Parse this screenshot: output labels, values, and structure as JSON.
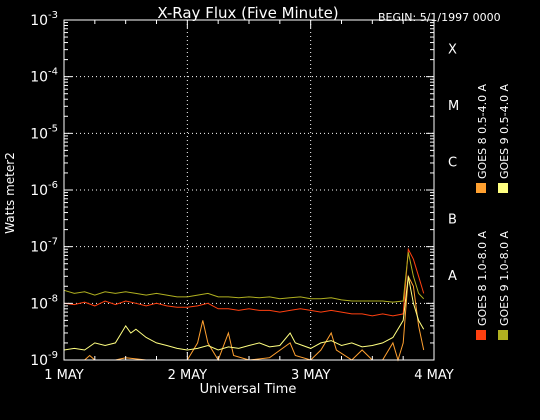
{
  "chart_data": {
    "type": "line",
    "title": "X-Ray Flux (Five Minute)",
    "begin_label": "BEGIN: 5/1/1997 0000",
    "xlabel": "Universal Time",
    "ylabel": "Watts meter2",
    "x_unit": "hours since begin",
    "xlim": [
      0,
      72
    ],
    "x_ticks": [
      {
        "value": 0,
        "label": "1 MAY"
      },
      {
        "value": 24,
        "label": "2 MAY"
      },
      {
        "value": 48,
        "label": "3 MAY"
      },
      {
        "value": 72,
        "label": "4 MAY"
      }
    ],
    "y_scale": "log",
    "ylim": [
      1e-09,
      0.001
    ],
    "y_ticks": [
      {
        "value": 1e-09,
        "base": "10",
        "exp": "-9"
      },
      {
        "value": 1e-08,
        "base": "10",
        "exp": "-8"
      },
      {
        "value": 1e-07,
        "base": "10",
        "exp": "-7"
      },
      {
        "value": 1e-06,
        "base": "10",
        "exp": "-6"
      },
      {
        "value": 1e-05,
        "base": "10",
        "exp": "-5"
      },
      {
        "value": 0.0001,
        "base": "10",
        "exp": "-4"
      },
      {
        "value": 0.001,
        "base": "10",
        "exp": "-3"
      }
    ],
    "flare_classes": [
      {
        "label": "A",
        "value": 1e-08
      },
      {
        "label": "B",
        "value": 1e-07
      },
      {
        "label": "C",
        "value": 1e-06
      },
      {
        "label": "M",
        "value": 1e-05
      },
      {
        "label": "X",
        "value": 0.0001
      }
    ],
    "grid": true,
    "legend_position": "right, vertical",
    "series": [
      {
        "name": "GOES 8 1.0-8.0 A",
        "color": "#ff4010",
        "points": [
          [
            0,
            1e-08
          ],
          [
            2,
            9.5e-09
          ],
          [
            4,
            1.05e-08
          ],
          [
            6,
            9e-09
          ],
          [
            8,
            1.1e-08
          ],
          [
            10,
            9.5e-09
          ],
          [
            12,
            1.1e-08
          ],
          [
            14,
            1e-08
          ],
          [
            16,
            9e-09
          ],
          [
            18,
            1e-08
          ],
          [
            20,
            9e-09
          ],
          [
            22,
            8.5e-09
          ],
          [
            24,
            8.5e-09
          ],
          [
            26,
            9e-09
          ],
          [
            28,
            1e-08
          ],
          [
            30,
            8e-09
          ],
          [
            32,
            8e-09
          ],
          [
            34,
            7.5e-09
          ],
          [
            36,
            8e-09
          ],
          [
            38,
            7.5e-09
          ],
          [
            40,
            7.5e-09
          ],
          [
            42,
            7e-09
          ],
          [
            44,
            7.5e-09
          ],
          [
            46,
            8e-09
          ],
          [
            48,
            7.5e-09
          ],
          [
            50,
            7e-09
          ],
          [
            52,
            7.5e-09
          ],
          [
            54,
            7e-09
          ],
          [
            56,
            6.5e-09
          ],
          [
            58,
            6.5e-09
          ],
          [
            60,
            6e-09
          ],
          [
            62,
            6.5e-09
          ],
          [
            64,
            6e-09
          ],
          [
            66,
            6.5e-09
          ],
          [
            67,
            9e-08
          ],
          [
            68,
            6e-08
          ],
          [
            69,
            3e-08
          ],
          [
            70,
            1.5e-08
          ]
        ]
      },
      {
        "name": "GOES 8 0.5-4.0 A",
        "color": "#ffa030",
        "points": [
          [
            0,
            1e-09
          ],
          [
            4,
            1e-09
          ],
          [
            5,
            1.2e-09
          ],
          [
            6,
            1e-09
          ],
          [
            10,
            1e-09
          ],
          [
            12,
            1.1e-09
          ],
          [
            16,
            1e-09
          ],
          [
            24,
            1e-09
          ],
          [
            26,
            2e-09
          ],
          [
            27,
            5e-09
          ],
          [
            28,
            2e-09
          ],
          [
            30,
            1e-09
          ],
          [
            32,
            3e-09
          ],
          [
            33,
            1.2e-09
          ],
          [
            36,
            1e-09
          ],
          [
            40,
            1.1e-09
          ],
          [
            44,
            2e-09
          ],
          [
            45,
            1.2e-09
          ],
          [
            48,
            1e-09
          ],
          [
            50,
            1.5e-09
          ],
          [
            52,
            3e-09
          ],
          [
            53,
            1.5e-09
          ],
          [
            56,
            1e-09
          ],
          [
            58,
            1.5e-09
          ],
          [
            60,
            1e-09
          ],
          [
            62,
            1e-09
          ],
          [
            64,
            2e-09
          ],
          [
            65,
            1e-09
          ],
          [
            66,
            2e-09
          ],
          [
            67,
            3e-08
          ],
          [
            68,
            2e-08
          ],
          [
            69,
            4e-09
          ],
          [
            70,
            1.5e-09
          ]
        ]
      },
      {
        "name": "GOES 9 1.0-8.0 A",
        "color": "#b0b020",
        "points": [
          [
            0,
            1.7e-08
          ],
          [
            2,
            1.5e-08
          ],
          [
            4,
            1.6e-08
          ],
          [
            6,
            1.4e-08
          ],
          [
            8,
            1.6e-08
          ],
          [
            10,
            1.5e-08
          ],
          [
            12,
            1.6e-08
          ],
          [
            14,
            1.5e-08
          ],
          [
            16,
            1.4e-08
          ],
          [
            18,
            1.5e-08
          ],
          [
            20,
            1.4e-08
          ],
          [
            22,
            1.3e-08
          ],
          [
            24,
            1.3e-08
          ],
          [
            26,
            1.4e-08
          ],
          [
            28,
            1.5e-08
          ],
          [
            30,
            1.3e-08
          ],
          [
            32,
            1.3e-08
          ],
          [
            34,
            1.25e-08
          ],
          [
            36,
            1.3e-08
          ],
          [
            38,
            1.25e-08
          ],
          [
            40,
            1.3e-08
          ],
          [
            42,
            1.2e-08
          ],
          [
            44,
            1.25e-08
          ],
          [
            46,
            1.3e-08
          ],
          [
            48,
            1.2e-08
          ],
          [
            50,
            1.2e-08
          ],
          [
            52,
            1.25e-08
          ],
          [
            54,
            1.15e-08
          ],
          [
            56,
            1.1e-08
          ],
          [
            58,
            1.1e-08
          ],
          [
            60,
            1.1e-08
          ],
          [
            62,
            1.1e-08
          ],
          [
            64,
            1.05e-08
          ],
          [
            66,
            1.1e-08
          ],
          [
            67,
            8e-08
          ],
          [
            68,
            3e-08
          ],
          [
            69,
            1.5e-08
          ],
          [
            70,
            1.2e-08
          ]
        ]
      },
      {
        "name": "GOES 9 0.5-4.0 A",
        "color": "#ffff80",
        "points": [
          [
            0,
            1.5e-09
          ],
          [
            2,
            1.6e-09
          ],
          [
            4,
            1.5e-09
          ],
          [
            6,
            2e-09
          ],
          [
            8,
            1.8e-09
          ],
          [
            10,
            2e-09
          ],
          [
            12,
            4e-09
          ],
          [
            13,
            3e-09
          ],
          [
            14,
            3.5e-09
          ],
          [
            16,
            2.5e-09
          ],
          [
            18,
            2e-09
          ],
          [
            20,
            1.8e-09
          ],
          [
            22,
            1.6e-09
          ],
          [
            24,
            1.5e-09
          ],
          [
            26,
            1.6e-09
          ],
          [
            28,
            1.8e-09
          ],
          [
            30,
            1.5e-09
          ],
          [
            32,
            1.7e-09
          ],
          [
            34,
            1.6e-09
          ],
          [
            36,
            1.8e-09
          ],
          [
            38,
            2e-09
          ],
          [
            40,
            1.7e-09
          ],
          [
            42,
            1.8e-09
          ],
          [
            44,
            3e-09
          ],
          [
            45,
            2e-09
          ],
          [
            48,
            1.6e-09
          ],
          [
            50,
            2e-09
          ],
          [
            52,
            2.2e-09
          ],
          [
            54,
            1.8e-09
          ],
          [
            56,
            2e-09
          ],
          [
            58,
            1.7e-09
          ],
          [
            60,
            1.8e-09
          ],
          [
            62,
            2e-09
          ],
          [
            64,
            2.5e-09
          ],
          [
            66,
            5e-09
          ],
          [
            67,
            3e-08
          ],
          [
            68,
            1e-08
          ],
          [
            69,
            5e-09
          ],
          [
            70,
            3.5e-09
          ]
        ]
      }
    ]
  }
}
